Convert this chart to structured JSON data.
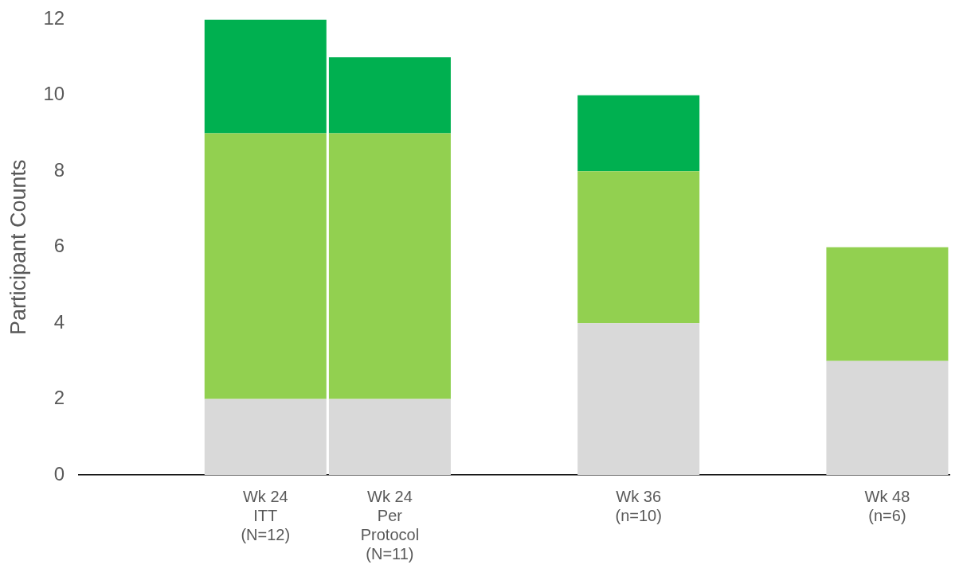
{
  "chart_data": {
    "type": "bar",
    "stacked": true,
    "ylabel": "Participant Counts",
    "categories": [
      null,
      "Wk 24\nITT\n(N=12)",
      "Wk 24\nPer\nProtocol\n(N=11)",
      null,
      "Wk 36\n(n=10)",
      null,
      "Wk 48\n(n=6)"
    ],
    "series": [
      {
        "color": "#d9d9d9",
        "values": [
          null,
          2,
          2,
          null,
          4,
          null,
          3
        ]
      },
      {
        "color": "#92d050",
        "values": [
          null,
          7,
          7,
          null,
          4,
          null,
          3
        ]
      },
      {
        "color": "#00b050",
        "values": [
          null,
          3,
          2,
          null,
          2,
          null,
          null
        ]
      }
    ],
    "ylim": [
      0,
      12
    ],
    "yticks": [
      0,
      2,
      4,
      6,
      8,
      10,
      12
    ],
    "grid": false,
    "legend": false
  }
}
